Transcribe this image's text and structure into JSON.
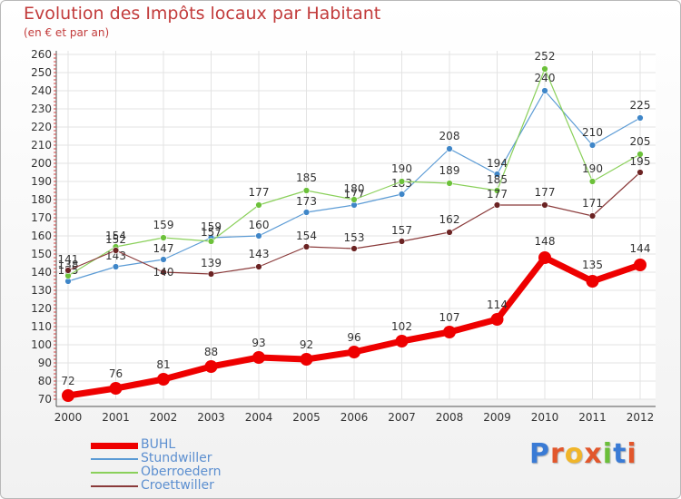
{
  "title": "Evolution des Impôts locaux par Habitant",
  "subtitle": "(en € et par an)",
  "brand": {
    "letters": [
      "P",
      "r",
      "o",
      "x",
      "i",
      "t",
      "i"
    ],
    "colors": [
      "#3a7bd5",
      "#e2572c",
      "#f0b52a",
      "#e2572c",
      "#6bbf3a",
      "#3a7bd5",
      "#e2572c"
    ]
  },
  "chart_data": {
    "type": "line",
    "x": [
      "2000",
      "2001",
      "2002",
      "2003",
      "2004",
      "2005",
      "2006",
      "2007",
      "2008",
      "2009",
      "2010",
      "2011",
      "2012"
    ],
    "yticks": [
      70,
      80,
      90,
      100,
      110,
      120,
      130,
      140,
      150,
      160,
      170,
      180,
      190,
      200,
      210,
      220,
      230,
      240,
      250,
      260
    ],
    "ylim": [
      70,
      260
    ],
    "grid": true,
    "legend_position": "bottom-left",
    "series": [
      {
        "name": "Stundwiller",
        "color": "#5b9bd5",
        "dot_color": "#3f86c8",
        "values": [
          135,
          143,
          147,
          159,
          160,
          173,
          177,
          183,
          208,
          194,
          240,
          210,
          225
        ],
        "labels": [
          "135",
          "143",
          "147",
          "159",
          "160",
          "173",
          "177",
          "183",
          "208",
          "194",
          "240",
          "210",
          "225"
        ]
      },
      {
        "name": "Oberroedern",
        "color": "#8ad05a",
        "dot_color": "#6cc13a",
        "values": [
          138,
          154,
          159,
          157,
          177,
          185,
          180,
          190,
          189,
          185,
          252,
          190,
          205
        ],
        "labels": [
          "138",
          "154",
          "159",
          "157",
          "177",
          "185",
          "180",
          "190",
          "189",
          "185",
          "252",
          "190",
          "205"
        ]
      },
      {
        "name": "Croettwiller",
        "color": "#8a3a3a",
        "dot_color": "#6b2323",
        "values": [
          141,
          152,
          140,
          139,
          143,
          154,
          153,
          157,
          162,
          177,
          177,
          171,
          195
        ],
        "labels": [
          "141",
          "152",
          "140",
          "139",
          "143",
          "154",
          "153",
          "157",
          "162",
          "177",
          "177",
          "171",
          "195"
        ]
      },
      {
        "name": "BUHL",
        "color": "#ee0000",
        "dot_color": "#ee0000",
        "values": [
          72,
          76,
          81,
          88,
          93,
          92,
          96,
          102,
          107,
          114,
          148,
          135,
          144
        ],
        "labels": [
          "72",
          "76",
          "81",
          "88",
          "93",
          "92",
          "96",
          "102",
          "107",
          "114",
          "148",
          "135",
          "144"
        ]
      }
    ],
    "legend_order": [
      "BUHL",
      "Stundwiller",
      "Oberroedern",
      "Croettwiller"
    ]
  }
}
